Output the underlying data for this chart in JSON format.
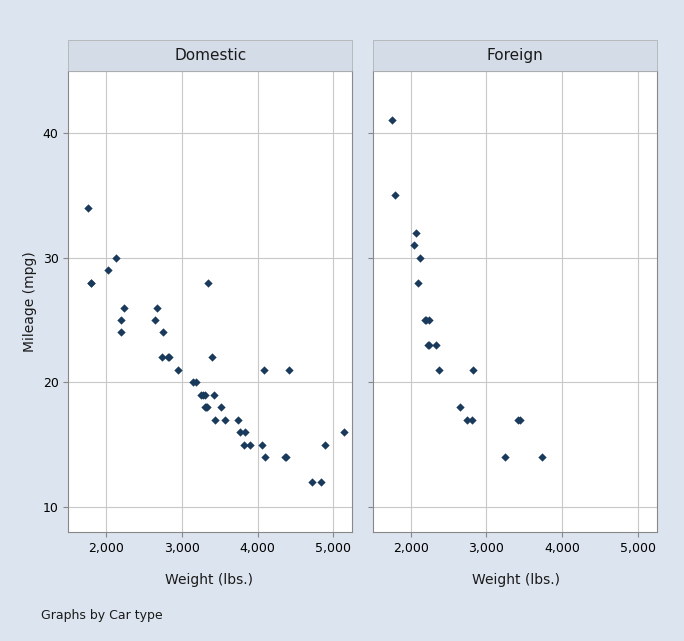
{
  "domestic_weight": [
    1760,
    1800,
    1800,
    2020,
    2130,
    2190,
    2200,
    2230,
    2650,
    2670,
    2730,
    2750,
    2810,
    2830,
    2950,
    3140,
    3190,
    3250,
    3280,
    3300,
    3310,
    3320,
    3330,
    3350,
    3400,
    3420,
    3440,
    3520,
    3570,
    3740,
    3770,
    3820,
    3830,
    3900,
    4060,
    4080,
    4100,
    4360,
    4380,
    4420,
    4720,
    4840,
    4890,
    5140
  ],
  "domestic_mpg": [
    34,
    28,
    28,
    29,
    30,
    25,
    24,
    26,
    25,
    26,
    22,
    24,
    22,
    22,
    21,
    20,
    20,
    19,
    19,
    19,
    18,
    18,
    18,
    28,
    22,
    19,
    17,
    18,
    17,
    17,
    16,
    15,
    16,
    15,
    15,
    21,
    14,
    14,
    14,
    21,
    12,
    12,
    15,
    16
  ],
  "foreign_weight": [
    1760,
    1800,
    2040,
    2070,
    2100,
    2130,
    2190,
    2200,
    2230,
    2240,
    2240,
    2330,
    2370,
    2650,
    2750,
    2810,
    2830,
    3250,
    3420,
    3440,
    3740
  ],
  "foreign_mpg": [
    41,
    35,
    31,
    32,
    28,
    30,
    25,
    25,
    23,
    23,
    25,
    23,
    21,
    18,
    17,
    17,
    21,
    14,
    17,
    17,
    14
  ],
  "xlim": [
    1500,
    5250
  ],
  "ylim": [
    8,
    45
  ],
  "xticks": [
    2000,
    3000,
    4000,
    5000
  ],
  "yticks": [
    10,
    20,
    30,
    40
  ],
  "xlabel": "Weight (lbs.)",
  "ylabel": "Mileage (mpg)",
  "panel_titles": [
    "Domestic",
    "Foreign"
  ],
  "footer_text": "Graphs by Car type",
  "dot_color": "#1a3a5c",
  "dot_size": 18,
  "panel_title_bg": "#d4dce8",
  "plot_bg": "#ffffff",
  "outer_bg": "#dce4ef",
  "window_bg": "#c0c0c0",
  "grid_color": "#c8c8c8",
  "grid_linewidth": 0.8,
  "axis_linewidth": 0.8
}
